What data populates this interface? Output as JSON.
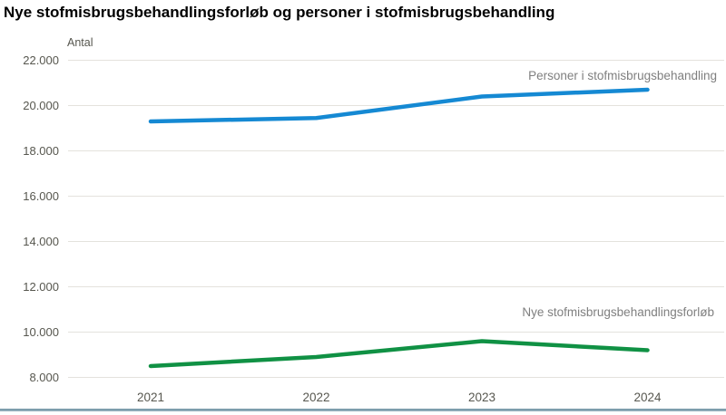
{
  "title": "Nye stofmisbrugsbehandlingsforløb og personer i stofmisbrugsbehandling",
  "y_unit_label": "Antal",
  "chart_data": {
    "type": "line",
    "x": [
      "2021",
      "2022",
      "2023",
      "2024"
    ],
    "series": [
      {
        "name": "Personer i stofmisbrugsbehandling",
        "values": [
          19300,
          19450,
          20400,
          20700
        ]
      },
      {
        "name": "Nye stofmisbrugsbehandlingsforløb",
        "values": [
          8500,
          8900,
          9600,
          9200
        ]
      }
    ],
    "ylim": [
      8000,
      22000
    ],
    "ytick_values": [
      8000,
      10000,
      12000,
      14000,
      16000,
      18000,
      20000,
      22000
    ],
    "ytick_labels": [
      "8.000",
      "10.000",
      "12.000",
      "14.000",
      "16.000",
      "18.000",
      "20.000",
      "22.000"
    ],
    "grid": true,
    "legend_position": "inline-labels-right"
  },
  "colors": {
    "series_personer": "#1589d3",
    "series_nye": "#109144",
    "gridline": "#e4e2dd",
    "axis_text": "#57574f",
    "series_label_text": "#7f7f7f",
    "bottom_border": "#7e9dac"
  }
}
